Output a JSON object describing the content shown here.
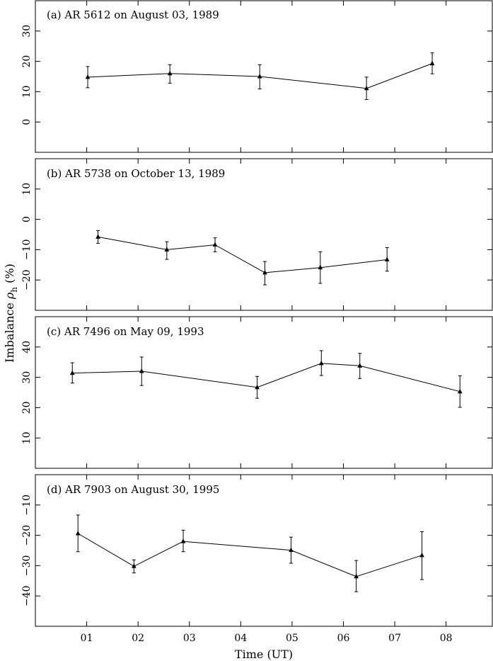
{
  "chart_data": {
    "type": "line",
    "xlabel": "Time (UT)",
    "ylabel": "Imbalance ρh (%)",
    "ylabel_parts": {
      "prefix": "Imbalance ",
      "symbol": "ρ",
      "subscript": "h",
      "suffix": " (%)"
    },
    "xlim": [
      0.0,
      8.9
    ],
    "x_ticks": [
      1,
      2,
      3,
      4,
      5,
      6,
      7,
      8
    ],
    "x_tick_labels": [
      "01",
      "02",
      "03",
      "04",
      "05",
      "06",
      "07",
      "08"
    ],
    "panels": [
      {
        "title": "(a) AR 5612 on August 03, 1989",
        "ylim": [
          -10,
          40
        ],
        "y_ticks": [
          0,
          10,
          20,
          30
        ],
        "y_tick_labels": [
          "0",
          "10",
          "20",
          "30"
        ],
        "points": [
          {
            "x": 1.02,
            "y": 14.8,
            "err_low": 11.3,
            "err_high": 18.3
          },
          {
            "x": 2.62,
            "y": 16.0,
            "err_low": 12.8,
            "err_high": 18.9
          },
          {
            "x": 4.37,
            "y": 15.0,
            "err_low": 10.9,
            "err_high": 18.9
          },
          {
            "x": 6.45,
            "y": 11.1,
            "err_low": 7.4,
            "err_high": 14.8
          },
          {
            "x": 7.73,
            "y": 19.3,
            "err_low": 15.9,
            "err_high": 22.8
          }
        ]
      },
      {
        "title": "(b) AR 5738 on October 13, 1989",
        "ylim": [
          -30,
          20
        ],
        "y_ticks": [
          -20,
          -10,
          0,
          10
        ],
        "y_tick_labels": [
          "−20",
          "−10",
          "0",
          "10"
        ],
        "points": [
          {
            "x": 1.22,
            "y": -5.8,
            "err_low": -7.9,
            "err_high": -3.7
          },
          {
            "x": 2.56,
            "y": -10.0,
            "err_low": -13.2,
            "err_high": -7.4
          },
          {
            "x": 3.5,
            "y": -8.4,
            "err_low": -10.7,
            "err_high": -6.1
          },
          {
            "x": 4.47,
            "y": -17.6,
            "err_low": -21.6,
            "err_high": -13.9
          },
          {
            "x": 5.55,
            "y": -15.9,
            "err_low": -21.1,
            "err_high": -10.7
          },
          {
            "x": 6.85,
            "y": -13.3,
            "err_low": -17.1,
            "err_high": -9.3
          }
        ]
      },
      {
        "title": "(c) AR 7496 on May 09, 1993",
        "ylim": [
          0,
          50
        ],
        "y_ticks": [
          10,
          20,
          30,
          40
        ],
        "y_tick_labels": [
          "10",
          "20",
          "30",
          "40"
        ],
        "points": [
          {
            "x": 0.72,
            "y": 31.4,
            "err_low": 28.1,
            "err_high": 34.8
          },
          {
            "x": 2.07,
            "y": 32.0,
            "err_low": 27.3,
            "err_high": 36.7
          },
          {
            "x": 4.32,
            "y": 26.7,
            "err_low": 23.1,
            "err_high": 30.3
          },
          {
            "x": 5.57,
            "y": 34.6,
            "err_low": 30.6,
            "err_high": 38.8
          },
          {
            "x": 6.32,
            "y": 33.8,
            "err_low": 29.6,
            "err_high": 37.9
          },
          {
            "x": 8.27,
            "y": 25.3,
            "err_low": 20.1,
            "err_high": 30.5
          }
        ]
      },
      {
        "title": "(d) AR 7903 on August 30, 1995",
        "ylim": [
          -50,
          0
        ],
        "y_ticks": [
          -40,
          -30,
          -20,
          -10
        ],
        "y_tick_labels": [
          "−40",
          "−30",
          "−20",
          "−10"
        ],
        "points": [
          {
            "x": 0.83,
            "y": -19.4,
            "err_low": -25.4,
            "err_high": -13.3
          },
          {
            "x": 1.92,
            "y": -30.2,
            "err_low": -32.4,
            "err_high": -28.1
          },
          {
            "x": 2.88,
            "y": -22.0,
            "err_low": -25.4,
            "err_high": -18.3
          },
          {
            "x": 4.98,
            "y": -24.9,
            "err_low": -29.2,
            "err_high": -20.6
          },
          {
            "x": 6.25,
            "y": -33.6,
            "err_low": -38.6,
            "err_high": -28.3
          },
          {
            "x": 7.53,
            "y": -26.6,
            "err_low": -34.6,
            "err_high": -18.8
          }
        ]
      }
    ]
  }
}
